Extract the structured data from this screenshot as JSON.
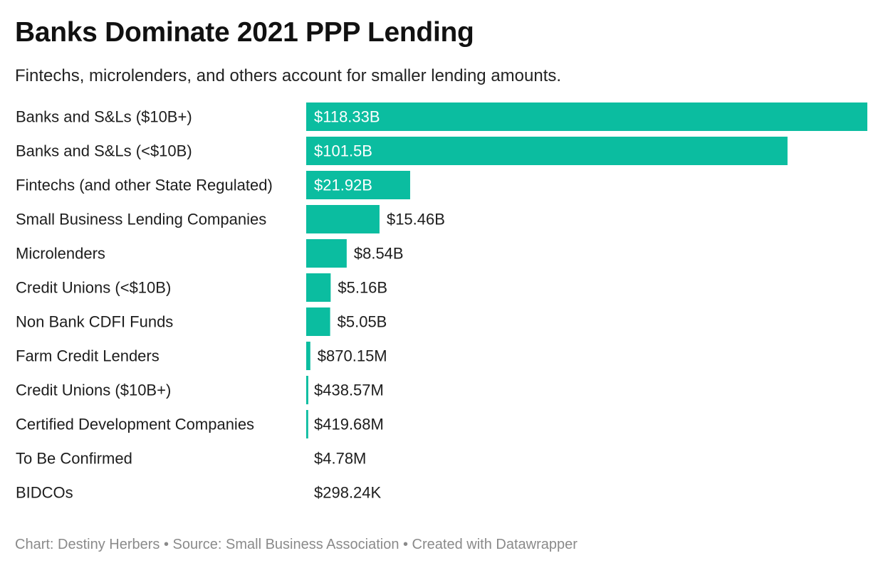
{
  "header": {
    "title": "Banks Dominate 2021 PPP Lending",
    "subtitle": "Fintechs, microlenders, and others account for smaller lending amounts."
  },
  "footer": {
    "text": "Chart: Destiny Herbers • Source: Small Business Association • Created with Datawrapper"
  },
  "colors": {
    "bar": "#0bbda0",
    "label_inside": "#ffffff",
    "label_outside": "#1d1d1d"
  },
  "chart_data": {
    "type": "bar",
    "orientation": "horizontal",
    "title": "Banks Dominate 2021 PPP Lending",
    "subtitle": "Fintechs, microlenders, and others account for smaller lending amounts.",
    "unit": "USD",
    "categories": [
      "Banks and S&Ls ($10B+)",
      "Banks and S&Ls (<$10B)",
      "Fintechs (and other State Regulated)",
      "Small Business Lending Companies",
      "Microlenders",
      "Credit Unions (<$10B)",
      "Non Bank CDFI Funds",
      "Farm Credit Lenders",
      "Credit Unions ($10B+)",
      "Certified Development Companies",
      "To Be Confirmed",
      "BIDCOs"
    ],
    "values": [
      118330000000,
      101500000000,
      21920000000,
      15460000000,
      8540000000,
      5160000000,
      5050000000,
      870150000,
      438570000,
      419680000,
      4780000,
      298240
    ],
    "value_labels": [
      "$118.33B",
      "$101.5B",
      "$21.92B",
      "$15.46B",
      "$8.54B",
      "$5.16B",
      "$5.05B",
      "$870.15M",
      "$438.57M",
      "$419.68M",
      "$4.78M",
      "$298.24K"
    ],
    "xlim": [
      0,
      118330000000
    ],
    "grid": false,
    "legend": "none"
  }
}
